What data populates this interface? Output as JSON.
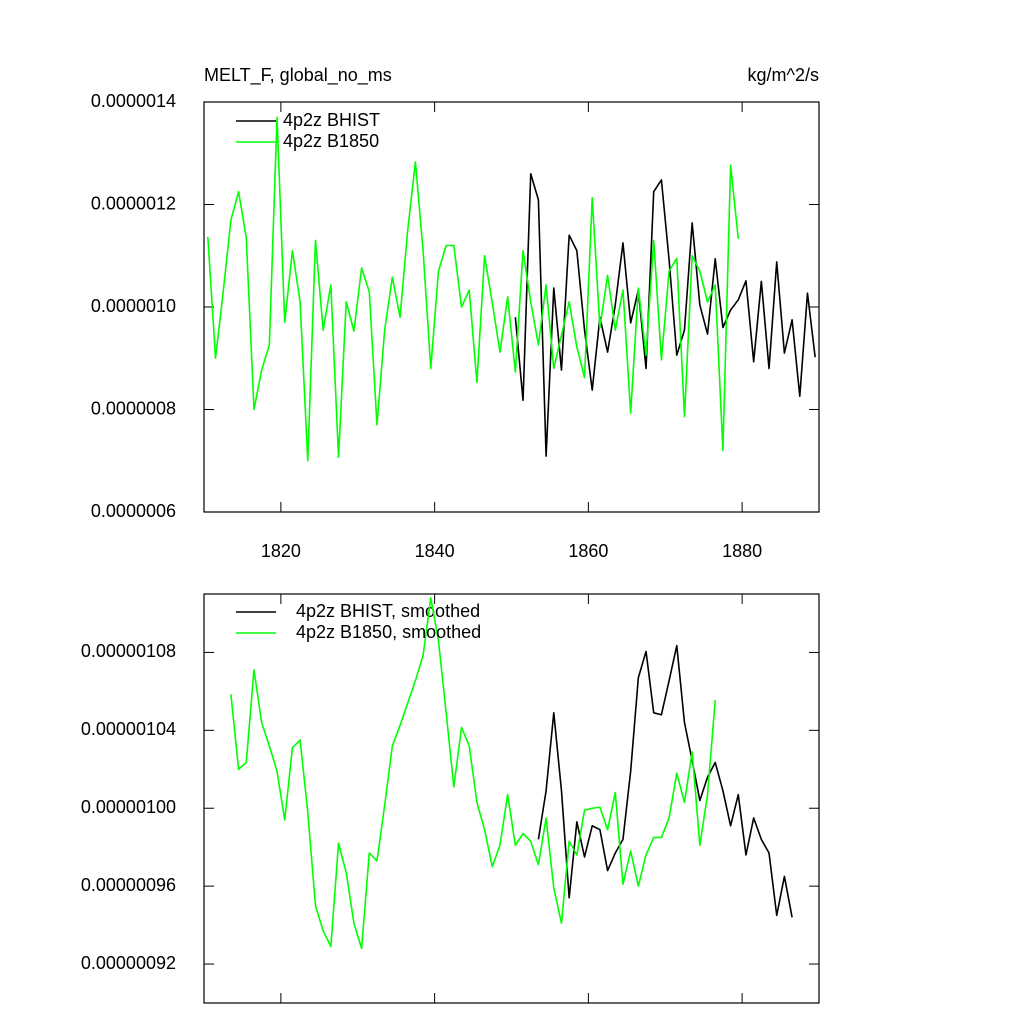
{
  "chart_data": [
    {
      "type": "line",
      "title": "MELT_F, global_no_ms",
      "units": "kg/m^2/s",
      "xlim": [
        1810,
        1890
      ],
      "xticks": [
        1820,
        1840,
        1860,
        1880
      ],
      "ylim": [
        6e-07,
        1.4e-06
      ],
      "yticks": [
        {
          "value": 6e-07,
          "label": "0.0000006"
        },
        {
          "value": 8e-07,
          "label": "0.0000008"
        },
        {
          "value": 1e-06,
          "label": "0.0000010"
        },
        {
          "value": 1.2e-06,
          "label": "0.0000012"
        },
        {
          "value": 1.4e-06,
          "label": "0.0000014"
        }
      ],
      "series": [
        {
          "name": "4p2z BHIST",
          "color": "#000000",
          "x": [
            1850.5,
            1851.5,
            1852.5,
            1853.5,
            1854.5,
            1855.5,
            1856.5,
            1857.5,
            1858.5,
            1859.5,
            1860.5,
            1861.5,
            1862.5,
            1863.5,
            1864.5,
            1865.5,
            1866.5,
            1867.5,
            1868.5,
            1869.5,
            1870.5,
            1871.5,
            1872.5,
            1873.5,
            1874.5,
            1875.5,
            1876.5,
            1877.5,
            1878.5,
            1879.5,
            1880.5,
            1881.5,
            1882.5,
            1883.5,
            1884.5,
            1885.5,
            1886.5,
            1887.5,
            1888.5,
            1889.5
          ],
          "values": [
            9.8e-07,
            8.18e-07,
            1.26e-06,
            1.209e-06,
            7.09e-07,
            1.037e-06,
            8.77e-07,
            1.14e-06,
            1.11e-06,
            9.55e-07,
            8.38e-07,
            9.8e-07,
            9.12e-07,
            1.004e-06,
            1.125e-06,
            9.69e-07,
            1.033e-06,
            8.8e-07,
            1.225e-06,
            1.248e-06,
            1.092e-06,
            9.06e-07,
            9.55e-07,
            1.164e-06,
            1.004e-06,
            9.47e-07,
            1.094e-06,
            9.6e-07,
            9.94e-07,
            1.014e-06,
            1.051e-06,
            8.93e-07,
            1.05e-06,
            8.8e-07,
            1.088e-06,
            9.1e-07,
            9.75e-07,
            8.26e-07,
            1.027e-06,
            9.02e-07
          ]
        },
        {
          "name": "4p2z B1850",
          "color": "#00ff00",
          "x": [
            1810.5,
            1811.5,
            1812.5,
            1813.5,
            1814.5,
            1815.5,
            1816.5,
            1817.5,
            1818.5,
            1819.5,
            1820.5,
            1821.5,
            1822.5,
            1823.5,
            1824.5,
            1825.5,
            1826.5,
            1827.5,
            1828.5,
            1829.5,
            1830.5,
            1831.5,
            1832.5,
            1833.5,
            1834.5,
            1835.5,
            1836.5,
            1837.5,
            1838.5,
            1839.5,
            1840.5,
            1841.5,
            1842.5,
            1843.5,
            1844.5,
            1845.5,
            1846.5,
            1847.5,
            1848.5,
            1849.5,
            1850.5,
            1851.5,
            1852.5,
            1853.5,
            1854.5,
            1855.5,
            1856.5,
            1857.5,
            1858.5,
            1859.5,
            1860.5,
            1861.5,
            1862.5,
            1863.5,
            1864.5,
            1865.5,
            1866.5,
            1867.5,
            1868.5,
            1869.5,
            1870.5,
            1871.5,
            1872.5,
            1873.5,
            1874.5,
            1875.5,
            1876.5,
            1877.5,
            1878.5,
            1879.5
          ],
          "values": [
            1.137e-06,
            9e-07,
            1.03e-06,
            1.17e-06,
            1.225e-06,
            1.135e-06,
            8e-07,
            8.77e-07,
            9.26e-07,
            1.37e-06,
            9.7e-07,
            1.11e-06,
            1.01e-06,
            7e-07,
            1.13e-06,
            9.55e-07,
            1.043e-06,
            7.07e-07,
            1.01e-06,
            9.53e-07,
            1.076e-06,
            1.03e-06,
            7.7e-07,
            9.55e-07,
            1.058e-06,
            9.8e-07,
            1.15e-06,
            1.283e-06,
            1.11e-06,
            8.8e-07,
            1.07e-06,
            1.12e-06,
            1.12e-06,
            1e-06,
            1.033e-06,
            8.53e-07,
            1.1e-06,
            1.008e-06,
            9.12e-07,
            1.02e-06,
            8.73e-07,
            1.11e-06,
            1.01e-06,
            9.26e-07,
            1.043e-06,
            8.8e-07,
            9.45e-07,
            1.01e-06,
            9.22e-07,
            8.62e-07,
            1.213e-06,
            9.6e-07,
            1.062e-06,
            9.55e-07,
            1.033e-06,
            7.93e-07,
            1.037e-06,
            9.06e-07,
            1.13e-06,
            8.97e-07,
            1.07e-06,
            1.095e-06,
            7.86e-07,
            1.1e-06,
            1.07e-06,
            1.01e-06,
            1.043e-06,
            7.2e-07,
            1.277e-06,
            1.133e-06
          ]
        }
      ]
    },
    {
      "type": "line",
      "show_xtick_labels": false,
      "xlim": [
        1810,
        1890
      ],
      "xticks": [
        1820,
        1840,
        1860,
        1880
      ],
      "ylim": [
        9e-07,
        1.11e-06
      ],
      "yticks": [
        {
          "value": 9.2e-07,
          "label": "0.00000092"
        },
        {
          "value": 9.6e-07,
          "label": "0.00000096"
        },
        {
          "value": 1e-06,
          "label": "0.00000100"
        },
        {
          "value": 1.04e-06,
          "label": "0.00000104"
        },
        {
          "value": 1.08e-06,
          "label": "0.00000108"
        }
      ],
      "series": [
        {
          "name": "4p2z BHIST, smoothed",
          "color": "#000000",
          "x": [
            1853.5,
            1854.5,
            1855.5,
            1856.5,
            1857.5,
            1858.5,
            1859.5,
            1860.5,
            1861.5,
            1862.5,
            1863.5,
            1864.5,
            1865.5,
            1866.5,
            1867.5,
            1868.5,
            1869.5,
            1870.5,
            1871.5,
            1872.5,
            1873.5,
            1874.5,
            1875.5,
            1876.5,
            1877.5,
            1878.5,
            1879.5,
            1880.5,
            1881.5,
            1882.5,
            1883.5,
            1884.5,
            1885.5,
            1886.5
          ],
          "values": [
            9.84e-07,
            1.009e-06,
            1.049e-06,
            1.009e-06,
            9.54e-07,
            9.93e-07,
            9.75e-07,
            9.91e-07,
            9.89e-07,
            9.68e-07,
            9.77e-07,
            9.84e-07,
            1.019e-06,
            1.067e-06,
            1.0805e-06,
            1.049e-06,
            1.048e-06,
            1.0655e-06,
            1.0835e-06,
            1.044e-06,
            1.0245e-06,
            1.004e-06,
            1.016e-06,
            1.0235e-06,
            1.009e-06,
            9.91e-07,
            1.007e-06,
            9.76e-07,
            9.95e-07,
            9.84e-07,
            9.77e-07,
            9.45e-07,
            9.65e-07,
            9.44e-07
          ]
        },
        {
          "name": "4p2z B1850, smoothed",
          "color": "#00ff00",
          "x": [
            1813.5,
            1814.5,
            1815.5,
            1816.5,
            1817.5,
            1818.5,
            1819.5,
            1820.5,
            1821.5,
            1822.5,
            1823.5,
            1824.5,
            1825.5,
            1826.5,
            1827.5,
            1828.5,
            1829.5,
            1830.5,
            1831.5,
            1832.5,
            1833.5,
            1834.5,
            1835.5,
            1836.5,
            1837.5,
            1838.5,
            1839.5,
            1840.5,
            1841.5,
            1842.5,
            1843.5,
            1844.5,
            1845.5,
            1846.5,
            1847.5,
            1848.5,
            1849.5,
            1850.5,
            1851.5,
            1852.5,
            1853.5,
            1854.5,
            1855.5,
            1856.5,
            1857.5,
            1858.5,
            1859.5,
            1860.5,
            1861.5,
            1862.5,
            1863.5,
            1864.5,
            1865.5,
            1866.5,
            1867.5,
            1868.5,
            1869.5,
            1870.5,
            1871.5,
            1872.5,
            1873.5,
            1874.5,
            1875.5,
            1876.5
          ],
          "values": [
            1.0585e-06,
            1.02e-06,
            1.0235e-06,
            1.071e-06,
            1.044e-06,
            1.032e-06,
            1.019e-06,
            9.94e-07,
            1.031e-06,
            1.035e-06,
            9.98e-07,
            9.5e-07,
            9.37e-07,
            9.29e-07,
            9.82e-07,
            9.67e-07,
            9.41e-07,
            9.28e-07,
            9.77e-07,
            9.73e-07,
            1.0015e-06,
            1.032e-06,
            1.0425e-06,
            1.054e-06,
            1.0655e-06,
            1.0785e-06,
            1.108e-06,
            1.086e-06,
            1.049e-06,
            1.011e-06,
            1.0415e-06,
            1.032e-06,
            1.003e-06,
            9.89e-07,
            9.7e-07,
            9.81e-07,
            1.007e-06,
            9.81e-07,
            9.87e-07,
            9.83e-07,
            9.71e-07,
            9.95e-07,
            9.59e-07,
            9.41e-07,
            9.83e-07,
            9.76e-07,
            9.99e-07,
            1e-06,
            1.0005e-06,
            9.89e-07,
            1.008e-06,
            9.61e-07,
            9.78e-07,
            9.6e-07,
            9.76e-07,
            9.85e-07,
            9.85e-07,
            9.95e-07,
            1.018e-06,
            1.003e-06,
            1.029e-06,
            9.81e-07,
            1.007e-06,
            1.0555e-06
          ]
        }
      ]
    }
  ]
}
